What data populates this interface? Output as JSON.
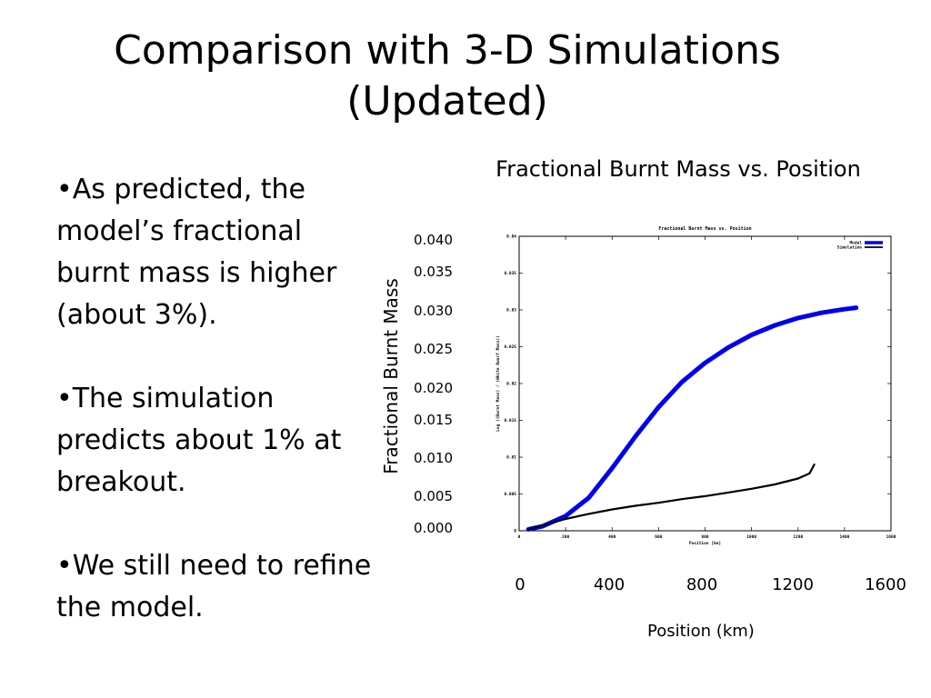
{
  "slide": {
    "title_line1": "Comparison with 3-D Simulations",
    "title_line2": "(Updated)",
    "bullets": [
      "•As predicted, the model’s fractional burnt mass is higher (about 3%).",
      "•The simulation predicts about 1% at breakout.",
      "•We still need to refine the model."
    ]
  },
  "annotations": {
    "chart_heading": "Fractional Burnt Mass vs. Position",
    "y_title": "Fractional Burnt Mass",
    "x_title": "Position (km)",
    "y_ticks": [
      "0.040",
      "0.035",
      "0.030",
      "0.025",
      "0.020",
      "0.015",
      "0.010",
      "0.005",
      "0.000"
    ],
    "x_ticks": [
      "0",
      "400",
      "800",
      "1200",
      "1600"
    ]
  },
  "chart_data": {
    "type": "line",
    "title": "Fractional Burnt Mass vs. Position",
    "xlabel": "Position [km]",
    "ylabel": "Log ((Burnt Mass) / (White Dwarf Mass))",
    "xlim": [
      0,
      1600
    ],
    "ylim": [
      0,
      0.04
    ],
    "x_tick_labels": [
      "0",
      "200",
      "400",
      "600",
      "800",
      "1000",
      "1200",
      "1400",
      "1600"
    ],
    "y_tick_labels": [
      "0",
      "0.005",
      "0.01",
      "0.015",
      "0.02",
      "0.025",
      "0.03",
      "0.035",
      "0.04"
    ],
    "legend_position": "top-right",
    "grid": false,
    "series": [
      {
        "name": "Model",
        "color": "#0000ee",
        "x": [
          40,
          100,
          200,
          300,
          400,
          500,
          600,
          700,
          800,
          900,
          1000,
          1100,
          1200,
          1300,
          1400,
          1450
        ],
        "y": [
          0.0002,
          0.0006,
          0.002,
          0.0045,
          0.0085,
          0.0128,
          0.0168,
          0.0202,
          0.0228,
          0.0249,
          0.0266,
          0.0279,
          0.0289,
          0.0296,
          0.0301,
          0.0303
        ]
      },
      {
        "name": "Simulation",
        "color": "#000000",
        "x": [
          40,
          100,
          200,
          300,
          400,
          500,
          600,
          700,
          800,
          900,
          1000,
          1100,
          1200,
          1250,
          1270
        ],
        "y": [
          0.0002,
          0.0007,
          0.0016,
          0.0023,
          0.0029,
          0.0034,
          0.0038,
          0.0043,
          0.0047,
          0.0052,
          0.0057,
          0.0063,
          0.0071,
          0.0078,
          0.009
        ]
      }
    ]
  }
}
